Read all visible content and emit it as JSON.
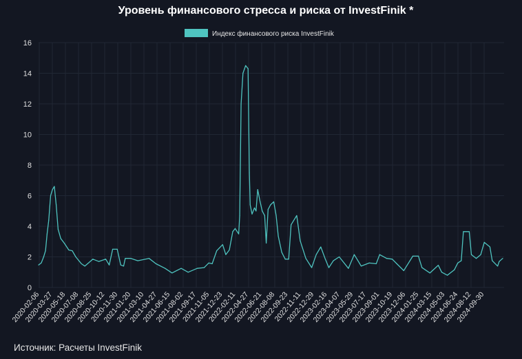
{
  "chart_data": {
    "type": "line",
    "title": "Уровень финансового стресса и риска от InvestFinik *",
    "source": "Источник: Расчеты InvestFinik",
    "xlabel": "",
    "ylabel": "",
    "ylim": [
      0,
      16
    ],
    "yticks": [
      0,
      2,
      4,
      6,
      8,
      10,
      12,
      14,
      16
    ],
    "grid": true,
    "legend_position": "top-center",
    "line_color": "#4fc4c0",
    "background": "#131722",
    "xticks": [
      "2020-02-06",
      "2020-03-27",
      "2020-05-18",
      "2020-07-08",
      "2020-08-25",
      "2020-10-12",
      "2020-11-30",
      "2021-01-20",
      "2021-03-10",
      "2021-04-27",
      "2021-06-15",
      "2021-08-02",
      "2021-09-17",
      "2021-11-05",
      "2021-12-23",
      "2022-02-11",
      "2022-04-27",
      "2022-06-21",
      "2022-08-08",
      "2022-09-23",
      "2022-11-11",
      "2022-12-29",
      "2023-02-16",
      "2023-04-07",
      "2023-05-29",
      "2023-07-17",
      "2023-09-01",
      "2023-10-19",
      "2023-12-06",
      "2024-01-25",
      "2024-03-15",
      "2024-05-03",
      "2024-06-24",
      "2024-08-12",
      "2024-09-30"
    ],
    "series": [
      {
        "name": "Индекс финансового риска InvestFinik",
        "x": [
          "2020-02-06",
          "2020-02-16",
          "2020-02-25",
          "2020-03-03",
          "2020-03-09",
          "2020-03-15",
          "2020-03-22",
          "2020-03-29",
          "2020-04-05",
          "2020-04-12",
          "2020-04-19",
          "2020-04-29",
          "2020-05-12",
          "2020-05-29",
          "2020-06-11",
          "2020-06-24",
          "2020-07-15",
          "2020-07-28",
          "2020-08-27",
          "2020-09-18",
          "2020-10-14",
          "2020-10-27",
          "2020-11-09",
          "2020-11-26",
          "2020-12-09",
          "2020-12-20",
          "2020-12-26",
          "2021-01-16",
          "2021-02-11",
          "2021-03-25",
          "2021-04-20",
          "2021-05-24",
          "2021-06-19",
          "2021-07-23",
          "2021-08-18",
          "2021-09-21",
          "2021-10-17",
          "2021-11-03",
          "2021-11-16",
          "2021-12-03",
          "2021-12-25",
          "2022-01-06",
          "2022-01-19",
          "2022-02-01",
          "2022-02-10",
          "2022-02-23",
          "2022-02-27",
          "2022-03-04",
          "2022-03-11",
          "2022-03-21",
          "2022-03-30",
          "2022-04-04",
          "2022-04-07",
          "2022-04-14",
          "2022-04-23",
          "2022-04-29",
          "2022-05-05",
          "2022-05-14",
          "2022-05-22",
          "2022-05-31",
          "2022-06-06",
          "2022-06-13",
          "2022-06-22",
          "2022-07-04",
          "2022-07-13",
          "2022-07-21",
          "2022-08-03",
          "2022-08-16",
          "2022-08-29",
          "2022-09-07",
          "2022-09-28",
          "2022-10-11",
          "2022-11-01",
          "2022-11-23",
          "2022-12-10",
          "2022-12-27",
          "2023-01-13",
          "2023-01-26",
          "2023-02-12",
          "2023-03-06",
          "2023-04-09",
          "2023-05-01",
          "2023-05-27",
          "2023-06-26",
          "2023-07-22",
          "2023-08-04",
          "2023-08-30",
          "2023-09-20",
          "2023-10-07",
          "2023-11-02",
          "2023-12-06",
          "2023-12-27",
          "2024-01-09",
          "2024-02-08",
          "2024-03-10",
          "2024-03-23",
          "2024-04-13",
          "2024-05-09",
          "2024-05-22",
          "2024-06-04",
          "2024-06-12",
          "2024-07-04",
          "2024-07-12",
          "2024-07-30",
          "2024-08-16",
          "2024-08-29",
          "2024-09-19",
          "2024-09-28",
          "2024-10-18",
          "2024-10-24",
          "2024-11-06"
        ],
        "y": [
          1.47,
          1.6,
          2.0,
          2.4,
          3.5,
          4.4,
          6.0,
          6.4,
          6.6,
          5.4,
          3.8,
          3.2,
          2.9,
          2.45,
          2.4,
          2.0,
          1.55,
          1.4,
          1.85,
          1.7,
          1.85,
          1.47,
          2.5,
          2.5,
          1.47,
          1.4,
          1.9,
          1.9,
          1.75,
          1.9,
          1.55,
          1.25,
          0.95,
          1.25,
          1.0,
          1.25,
          1.3,
          1.6,
          1.55,
          2.4,
          2.8,
          2.15,
          2.45,
          3.65,
          3.85,
          3.5,
          4.7,
          12.0,
          14.0,
          14.5,
          14.3,
          7.5,
          5.4,
          4.8,
          5.2,
          5.0,
          6.4,
          5.6,
          5.0,
          4.7,
          2.9,
          5.1,
          5.4,
          5.6,
          4.7,
          3.35,
          2.3,
          1.85,
          1.85,
          4.1,
          4.7,
          3.05,
          1.9,
          1.3,
          2.15,
          2.65,
          1.85,
          1.3,
          1.75,
          2.0,
          1.25,
          2.15,
          1.4,
          1.6,
          1.55,
          2.15,
          1.9,
          1.85,
          1.55,
          1.1,
          2.05,
          2.05,
          1.3,
          0.95,
          1.45,
          1.0,
          0.8,
          1.15,
          1.6,
          1.75,
          3.65,
          3.65,
          2.15,
          1.9,
          2.15,
          2.95,
          2.65,
          1.75,
          1.4,
          1.7,
          1.9
        ]
      }
    ]
  }
}
